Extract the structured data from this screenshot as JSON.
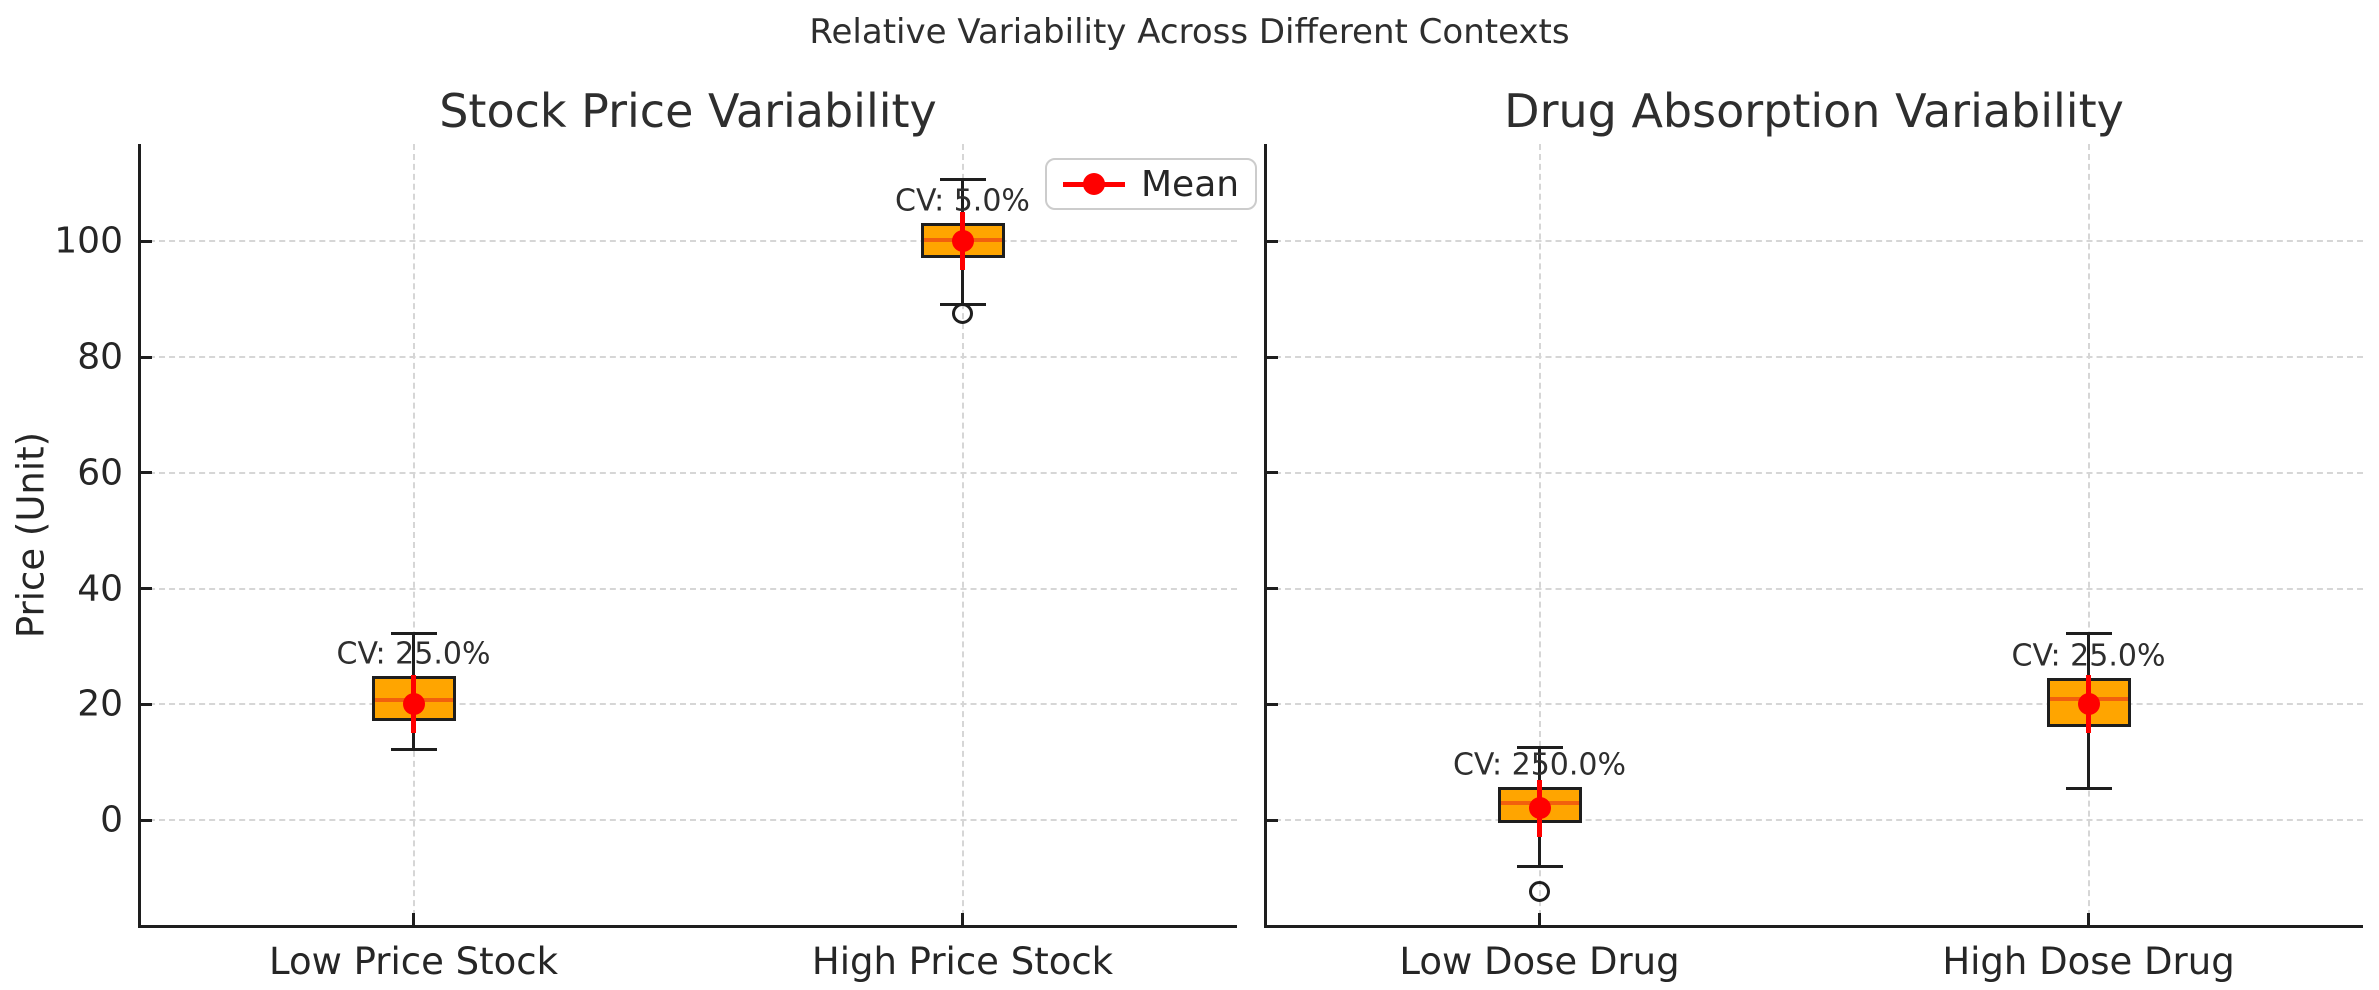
{
  "suptitle": "Relative Variability Across Different Contexts",
  "legend": {
    "label": "Mean",
    "position": "upper right of left subplot"
  },
  "colors": {
    "accent_mean": "#FF0000",
    "box_fill": "#FFA500",
    "box_edge": "#1E1E1E",
    "median": "#F2600D",
    "grid": "#D6D6D6",
    "text": "#262626"
  },
  "chart_data": [
    {
      "type": "boxplot",
      "title": "Stock Price Variability",
      "ylabel": "Price (Unit)",
      "categories": [
        "Low Price Stock",
        "High Price Stock"
      ],
      "yticks": [
        0,
        20,
        40,
        60,
        80,
        100
      ],
      "ytick_labels": [
        "0",
        "20",
        "40",
        "60",
        "80",
        "100"
      ],
      "ylim": [
        -18.3,
        116.8
      ],
      "grid": true,
      "show_ytick_labels": true,
      "boxes": [
        {
          "category": "Low Price Stock",
          "mean": 20,
          "std": 5,
          "cv_label": "CV: 25.0%",
          "median": 20.8,
          "q1": 17.1,
          "q3": 24.9,
          "whisker_low": 12.2,
          "whisker_high": 32.3,
          "outliers": []
        },
        {
          "category": "High Price Stock",
          "mean": 100,
          "std": 5,
          "cv_label": "CV: 5.0%",
          "median": 100.3,
          "q1": 97.1,
          "q3": 103.1,
          "whisker_low": 89.0,
          "whisker_high": 110.7,
          "outliers": [
            87.6
          ]
        }
      ]
    },
    {
      "type": "boxplot",
      "title": "Drug Absorption Variability",
      "ylabel": "",
      "categories": [
        "Low Dose Drug",
        "High Dose Drug"
      ],
      "yticks": [
        0,
        20,
        40,
        60,
        80,
        100
      ],
      "ytick_labels": [],
      "ylim": [
        -18.3,
        116.8
      ],
      "grid": true,
      "show_ytick_labels": false,
      "boxes": [
        {
          "category": "Low Dose Drug",
          "mean": 2,
          "std": 5,
          "cv_label": "CV: 250.0%",
          "median": 2.9,
          "q1": -0.5,
          "q3": 5.7,
          "whisker_low": -8.1,
          "whisker_high": 12.6,
          "outliers": [
            -12.4
          ]
        },
        {
          "category": "High Dose Drug",
          "mean": 20,
          "std": 5,
          "cv_label": "CV: 25.0%",
          "median": 20.9,
          "q1": 16.1,
          "q3": 24.5,
          "whisker_low": 5.5,
          "whisker_high": 32.3,
          "outliers": []
        }
      ]
    }
  ]
}
